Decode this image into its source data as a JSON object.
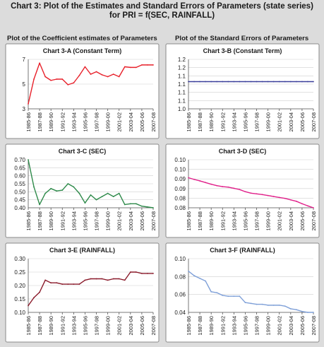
{
  "title": "Chart 3: Plot of the Estimates and Standard Errors of Parameters (state series) for PRI = f(SEC, RAINFALL)",
  "left_column_title": "Plot of the Coefficient estimates of Parameters",
  "right_column_title": "Plot of the Standard Errors of Parameters",
  "chart_data": [
    {
      "type": "line",
      "title": "Chart 3-A (Constant Term)",
      "color": "#e8202a",
      "x": [
        "1985-86",
        "1986-87",
        "1987-88",
        "1988-89",
        "1989-90",
        "1990-91",
        "1991-92",
        "1992-93",
        "1993-94",
        "1994-95",
        "1995-96",
        "1996-97",
        "1997-98",
        "1998-99",
        "1999-00",
        "2000-01",
        "2001-02",
        "2002-03",
        "2003-04",
        "2004-05",
        "2005-06",
        "2006-07",
        "2007-08"
      ],
      "xticks": [
        "1985-86",
        "1987-88",
        "1989-90",
        "1991-92",
        "1993-94",
        "1995-96",
        "1997-98",
        "1999-00",
        "2001-02",
        "2003-04",
        "2005-06",
        "2007-08"
      ],
      "values": [
        3.4,
        5.4,
        6.7,
        5.6,
        5.3,
        5.4,
        5.4,
        4.95,
        5.1,
        5.7,
        6.4,
        5.8,
        6.0,
        5.75,
        5.6,
        5.8,
        5.6,
        6.4,
        6.35,
        6.35,
        6.55,
        6.55,
        6.55
      ],
      "ylim": [
        3,
        7
      ],
      "yticks": [
        "3",
        "5",
        "7"
      ]
    },
    {
      "type": "line",
      "title": "Chart 3-B (Constant Term)",
      "color": "#3a3f9a",
      "x": [
        "1985-86",
        "1986-87",
        "1987-88",
        "1988-89",
        "1989-90",
        "1990-91",
        "1991-92",
        "1992-93",
        "1993-94",
        "1994-95",
        "1995-96",
        "1996-97",
        "1997-98",
        "1998-99",
        "1999-00",
        "2000-01",
        "2001-02",
        "2002-03",
        "2003-04",
        "2004-05",
        "2005-06",
        "2006-07",
        "2007-08"
      ],
      "xticks": [
        "1985-86",
        "1987-88",
        "1989-90",
        "1991-92",
        "1993-94",
        "1995-96",
        "1997-98",
        "1999-00",
        "2001-02",
        "2003-04",
        "2005-06",
        "2007-08"
      ],
      "values": [
        1.11,
        1.11,
        1.11,
        1.11,
        1.11,
        1.11,
        1.11,
        1.11,
        1.11,
        1.11,
        1.11,
        1.11,
        1.11,
        1.11,
        1.11,
        1.11,
        1.11,
        1.11,
        1.11,
        1.11,
        1.11,
        1.11,
        1.11
      ],
      "ylim": [
        1.0,
        1.2
      ],
      "yticks": [
        "1.0",
        "1.1",
        "1.1",
        "1.1",
        "1.1",
        "1.2",
        "1.2"
      ]
    },
    {
      "type": "line",
      "title": "Chart 3-C (SEC)",
      "color": "#2e8a4a",
      "x": [
        "1985-86",
        "1986-87",
        "1987-88",
        "1988-89",
        "1989-90",
        "1990-91",
        "1991-92",
        "1992-93",
        "1993-94",
        "1994-95",
        "1995-96",
        "1996-97",
        "1997-98",
        "1998-99",
        "1999-00",
        "2000-01",
        "2001-02",
        "2002-03",
        "2003-04",
        "2004-05",
        "2005-06",
        "2006-07",
        "2007-08"
      ],
      "xticks": [
        "1985-86",
        "1987-88",
        "1989-90",
        "1991-92",
        "1993-94",
        "1995-96",
        "1997-98",
        "1999-00",
        "2001-02",
        "2003-04",
        "2005-06",
        "2007-08"
      ],
      "values": [
        0.7,
        0.53,
        0.42,
        0.49,
        0.52,
        0.505,
        0.51,
        0.55,
        0.53,
        0.49,
        0.43,
        0.48,
        0.45,
        0.47,
        0.49,
        0.47,
        0.49,
        0.42,
        0.425,
        0.425,
        0.41,
        0.405,
        0.4
      ],
      "ylim": [
        0.4,
        0.7
      ],
      "yticks": [
        "0.40",
        "0.45",
        "0.50",
        "0.55",
        "0.60",
        "0.65",
        "0.70"
      ]
    },
    {
      "type": "line",
      "title": "Chart 3-D (SEC)",
      "color": "#e0208a",
      "x": [
        "1985-86",
        "1986-87",
        "1987-88",
        "1988-89",
        "1989-90",
        "1990-91",
        "1991-92",
        "1992-93",
        "1993-94",
        "1994-95",
        "1995-96",
        "1996-97",
        "1997-98",
        "1998-99",
        "1999-00",
        "2000-01",
        "2001-02",
        "2002-03",
        "2003-04",
        "2004-05",
        "2005-06",
        "2006-07",
        "2007-08"
      ],
      "xticks": [
        "1985-86",
        "1987-88",
        "1989-90",
        "1991-92",
        "1993-94",
        "1995-96",
        "1997-98",
        "1999-00",
        "2001-02",
        "2003-04",
        "2005-06",
        "2007-08"
      ],
      "values": [
        0.0925,
        0.0918,
        0.0912,
        0.0905,
        0.0898,
        0.0892,
        0.0888,
        0.0886,
        0.0881,
        0.0876,
        0.0867,
        0.0861,
        0.0858,
        0.0855,
        0.0851,
        0.0847,
        0.0843,
        0.0839,
        0.0833,
        0.0827,
        0.0817,
        0.0808,
        0.08
      ],
      "ylim": [
        0.08,
        0.1
      ],
      "yticks": [
        "0.08",
        "0.08",
        "0.09",
        "0.09",
        "0.10",
        "0.10"
      ]
    },
    {
      "type": "line",
      "title": "Chart 3-E (RAINFALL)",
      "color": "#8a1a2a",
      "x": [
        "1985-86",
        "1986-87",
        "1987-88",
        "1988-89",
        "1989-90",
        "1990-91",
        "1991-92",
        "1992-93",
        "1993-94",
        "1994-95",
        "1995-96",
        "1996-97",
        "1997-98",
        "1998-99",
        "1999-00",
        "2000-01",
        "2001-02",
        "2002-03",
        "2003-04",
        "2004-05",
        "2005-06",
        "2006-07",
        "2007-08"
      ],
      "xticks": [
        "1985-86",
        "1987-88",
        "1989-90",
        "1991-92",
        "1993-94",
        "1995-96",
        "1997-98",
        "1999-00",
        "2001-02",
        "2003-04",
        "2005-06",
        "2007-08"
      ],
      "values": [
        0.125,
        0.155,
        0.175,
        0.22,
        0.21,
        0.21,
        0.205,
        0.205,
        0.205,
        0.205,
        0.22,
        0.225,
        0.225,
        0.225,
        0.22,
        0.225,
        0.225,
        0.22,
        0.25,
        0.25,
        0.245,
        0.245,
        0.245
      ],
      "ylim": [
        0.1,
        0.3
      ],
      "yticks": [
        "0.10",
        "0.15",
        "0.20",
        "0.25",
        "0.30"
      ]
    },
    {
      "type": "line",
      "title": "Chart 3-F (RAINFALL)",
      "color": "#7fa0d8",
      "x": [
        "1985-86",
        "1986-87",
        "1987-88",
        "1988-89",
        "1989-90",
        "1990-91",
        "1991-92",
        "1992-93",
        "1993-94",
        "1994-95",
        "1995-96",
        "1996-97",
        "1997-98",
        "1998-99",
        "1999-00",
        "2000-01",
        "2001-02",
        "2002-03",
        "2003-04",
        "2004-05",
        "2005-06",
        "2006-07",
        "2007-08"
      ],
      "xticks": [
        "1985-86",
        "1987-88",
        "1989-90",
        "1991-92",
        "1993-94",
        "1995-96",
        "1997-98",
        "1999-00",
        "2001-02",
        "2003-04",
        "2005-06",
        "2007-08"
      ],
      "values": [
        0.086,
        0.081,
        0.078,
        0.075,
        0.063,
        0.062,
        0.059,
        0.058,
        0.058,
        0.058,
        0.051,
        0.05,
        0.049,
        0.049,
        0.048,
        0.048,
        0.048,
        0.047,
        0.044,
        0.043,
        0.041,
        0.04,
        0.04
      ],
      "ylim": [
        0.04,
        0.1
      ],
      "yticks": [
        "0.04",
        "0.06",
        "0.08",
        "0.10"
      ]
    }
  ]
}
